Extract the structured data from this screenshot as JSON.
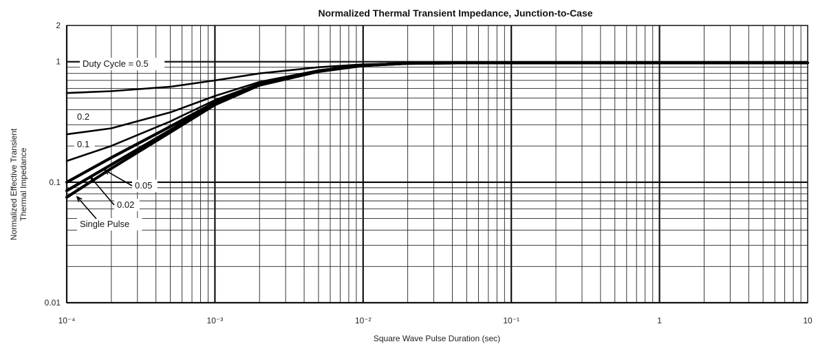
{
  "chart_data": {
    "type": "line",
    "title": "Normalized Thermal Transient Impedance, Junction-to-Case",
    "xlabel": "Square Wave Pulse Duration (sec)",
    "ylabel_line1": "Normalized Effective Transient",
    "ylabel_line2": "Thermal Impedance",
    "x_scale": "log",
    "y_scale": "log",
    "xlim": [
      0.0001,
      10
    ],
    "ylim": [
      0.01,
      2
    ],
    "grid": true,
    "x_ticks": [
      {
        "value": 0.0001,
        "label": "10⁻⁴"
      },
      {
        "value": 0.001,
        "label": "10⁻³"
      },
      {
        "value": 0.01,
        "label": "10⁻²"
      },
      {
        "value": 0.1,
        "label": "10⁻¹"
      },
      {
        "value": 1,
        "label": "1"
      },
      {
        "value": 10,
        "label": "10"
      }
    ],
    "y_ticks": [
      {
        "value": 0.01,
        "label": "0.01"
      },
      {
        "value": 0.1,
        "label": "0.1"
      },
      {
        "value": 1,
        "label": "1"
      },
      {
        "value": 2,
        "label": "2"
      }
    ],
    "series": [
      {
        "name": "Duty Cycle = 0.5",
        "x": [
          0.0001,
          0.0002,
          0.0005,
          0.001,
          0.002,
          0.005,
          0.01,
          0.02,
          0.05,
          0.1,
          1,
          10
        ],
        "y": [
          0.55,
          0.57,
          0.62,
          0.7,
          0.8,
          0.9,
          0.95,
          0.97,
          0.98,
          0.98,
          0.98,
          0.98
        ]
      },
      {
        "name": "0.2",
        "x": [
          0.0001,
          0.0002,
          0.0005,
          0.001,
          0.002,
          0.005,
          0.01,
          0.02,
          0.05,
          0.1,
          1,
          10
        ],
        "y": [
          0.25,
          0.28,
          0.38,
          0.52,
          0.68,
          0.85,
          0.93,
          0.97,
          0.98,
          0.98,
          0.98,
          0.98
        ]
      },
      {
        "name": "0.1",
        "x": [
          0.0001,
          0.0002,
          0.0005,
          0.001,
          0.002,
          0.005,
          0.01,
          0.02,
          0.05,
          0.1,
          1,
          10
        ],
        "y": [
          0.15,
          0.2,
          0.32,
          0.48,
          0.66,
          0.84,
          0.93,
          0.97,
          0.98,
          0.98,
          0.98,
          0.98
        ]
      },
      {
        "name": "0.05",
        "x": [
          0.0001,
          0.0002,
          0.0005,
          0.001,
          0.002,
          0.005,
          0.01,
          0.02,
          0.05,
          0.1,
          1,
          10
        ],
        "y": [
          0.1,
          0.16,
          0.29,
          0.46,
          0.65,
          0.84,
          0.93,
          0.97,
          0.98,
          0.98,
          0.98,
          0.98
        ]
      },
      {
        "name": "0.02",
        "x": [
          0.0001,
          0.0002,
          0.0005,
          0.001,
          0.002,
          0.005,
          0.01,
          0.02,
          0.05,
          0.1,
          1,
          10
        ],
        "y": [
          0.085,
          0.14,
          0.27,
          0.45,
          0.64,
          0.84,
          0.93,
          0.97,
          0.98,
          0.98,
          0.98,
          0.98
        ]
      },
      {
        "name": "Single Pulse",
        "x": [
          0.0001,
          0.0002,
          0.0005,
          0.001,
          0.002,
          0.005,
          0.01,
          0.02,
          0.05,
          0.1,
          1,
          10
        ],
        "y": [
          0.075,
          0.13,
          0.26,
          0.44,
          0.64,
          0.83,
          0.93,
          0.97,
          0.98,
          0.98,
          0.98,
          0.98
        ]
      }
    ]
  }
}
